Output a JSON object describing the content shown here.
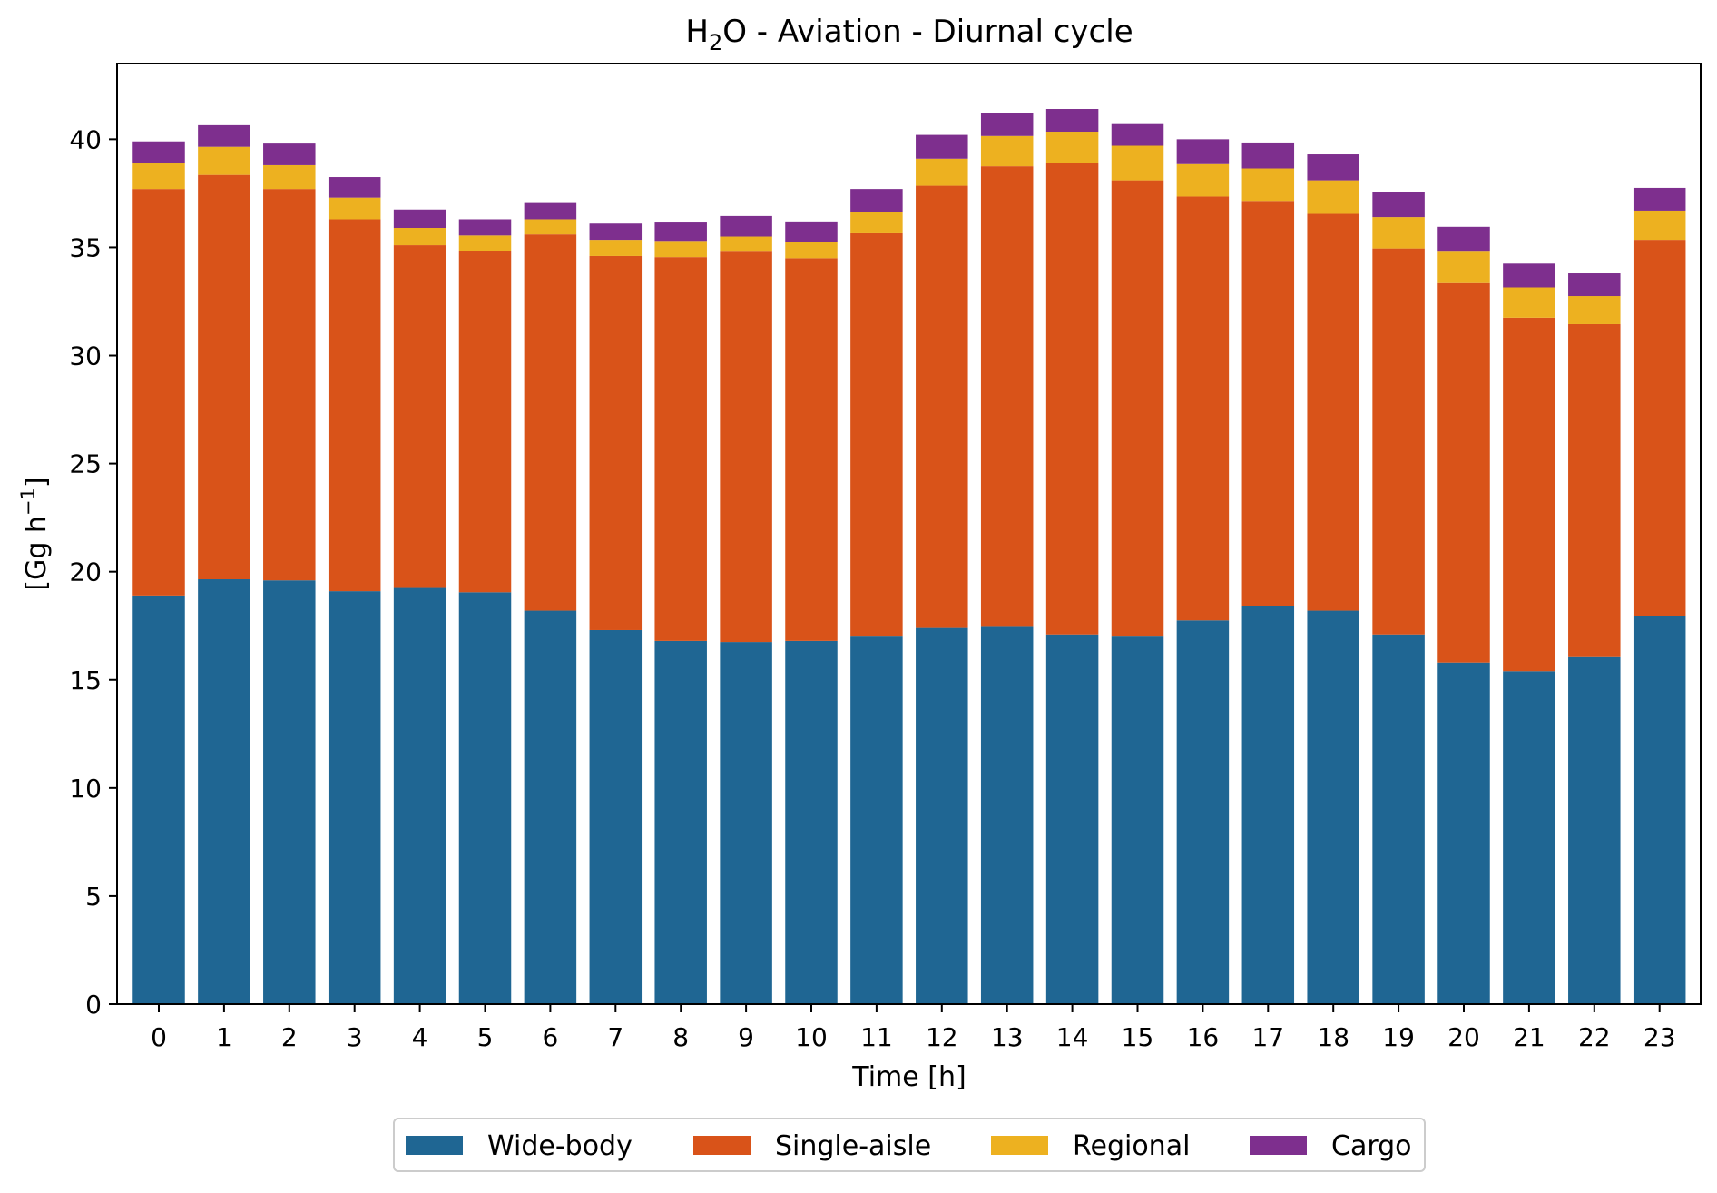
{
  "chart_data": {
    "type": "bar",
    "stacked": true,
    "title": {
      "prefix": "H",
      "subscript": "2",
      "suffix": "O - Aviation - Diurnal cycle"
    },
    "xlabel": "Time [h]",
    "ylabel": {
      "base": "[Gg h",
      "superscript": "−1",
      "close": "]"
    },
    "ylim": [
      0,
      43.5
    ],
    "yticks": [
      0,
      5,
      10,
      15,
      20,
      25,
      30,
      35,
      40
    ],
    "categories": [
      "0",
      "1",
      "2",
      "3",
      "4",
      "5",
      "6",
      "7",
      "8",
      "9",
      "10",
      "11",
      "12",
      "13",
      "14",
      "15",
      "16",
      "17",
      "18",
      "19",
      "20",
      "21",
      "22",
      "23"
    ],
    "legend_position": "bottom-center",
    "grid": false,
    "series": [
      {
        "name": "Wide-body",
        "color": "#1f6693",
        "values": [
          18.9,
          19.65,
          19.6,
          19.1,
          19.25,
          19.05,
          18.2,
          17.3,
          16.8,
          16.75,
          16.8,
          17.0,
          17.4,
          17.45,
          17.1,
          17.0,
          17.75,
          18.4,
          18.2,
          17.1,
          15.8,
          15.4,
          16.05,
          17.95
        ]
      },
      {
        "name": "Single-aisle",
        "color": "#d95319",
        "values": [
          18.8,
          18.7,
          18.1,
          17.2,
          15.85,
          15.8,
          17.4,
          17.3,
          17.75,
          18.05,
          17.7,
          18.65,
          20.45,
          21.3,
          21.8,
          21.1,
          19.6,
          18.75,
          18.35,
          17.85,
          17.55,
          16.35,
          15.4,
          17.4
        ]
      },
      {
        "name": "Regional",
        "color": "#edb120",
        "values": [
          1.2,
          1.3,
          1.1,
          1.0,
          0.8,
          0.7,
          0.7,
          0.75,
          0.75,
          0.7,
          0.75,
          1.0,
          1.25,
          1.4,
          1.45,
          1.6,
          1.5,
          1.5,
          1.55,
          1.45,
          1.45,
          1.4,
          1.3,
          1.35
        ]
      },
      {
        "name": "Cargo",
        "color": "#7e2f8e",
        "values": [
          1.0,
          1.0,
          1.0,
          0.95,
          0.85,
          0.75,
          0.75,
          0.75,
          0.85,
          0.95,
          0.95,
          1.05,
          1.1,
          1.05,
          1.05,
          1.0,
          1.15,
          1.2,
          1.2,
          1.15,
          1.15,
          1.1,
          1.05,
          1.05
        ]
      }
    ]
  }
}
